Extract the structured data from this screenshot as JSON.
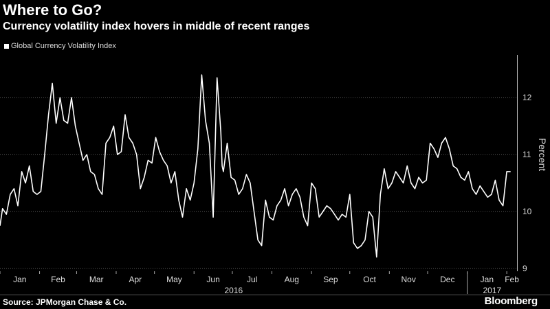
{
  "header": {
    "title": "Where to Go?",
    "subtitle": "Currency volatility index hovers in middle of recent ranges"
  },
  "footer": {
    "source": "Source: JPMorgan Chase & Co.",
    "brand": "Bloomberg"
  },
  "colors": {
    "background": "#000000",
    "line": "#ffffff",
    "grid": "#5a5a5a"
  },
  "chart_data": {
    "type": "line",
    "title": "Where to Go?",
    "subtitle": "Currency volatility index hovers in middle of recent ranges",
    "ylabel": "Percent",
    "ylim": [
      8.95,
      12.75
    ],
    "yticks": [
      9,
      10,
      11,
      12
    ],
    "grid": true,
    "legend_position": "top-left",
    "x_month_labels": [
      "Jan",
      "Feb",
      "Mar",
      "Apr",
      "May",
      "Jun",
      "Jul",
      "Aug",
      "Sep",
      "Oct",
      "Nov",
      "Dec",
      "Jan",
      "Feb"
    ],
    "x_year_labels": [
      "2016",
      "2017"
    ],
    "series": [
      {
        "name": "Global Currency Volatility Index",
        "x": [
          "2016-01-01",
          "2016-01-03",
          "2016-01-06",
          "2016-01-09",
          "2016-01-12",
          "2016-01-15",
          "2016-01-18",
          "2016-01-21",
          "2016-01-24",
          "2016-01-27",
          "2016-01-30",
          "2016-02-02",
          "2016-02-05",
          "2016-02-08",
          "2016-02-11",
          "2016-02-14",
          "2016-02-17",
          "2016-02-20",
          "2016-02-23",
          "2016-02-26",
          "2016-02-29",
          "2016-03-03",
          "2016-03-06",
          "2016-03-09",
          "2016-03-12",
          "2016-03-15",
          "2016-03-18",
          "2016-03-21",
          "2016-03-24",
          "2016-03-27",
          "2016-03-30",
          "2016-04-02",
          "2016-04-05",
          "2016-04-08",
          "2016-04-11",
          "2016-04-14",
          "2016-04-17",
          "2016-04-20",
          "2016-04-23",
          "2016-04-26",
          "2016-04-29",
          "2016-05-02",
          "2016-05-05",
          "2016-05-08",
          "2016-05-11",
          "2016-05-14",
          "2016-05-17",
          "2016-05-20",
          "2016-05-23",
          "2016-05-26",
          "2016-05-29",
          "2016-06-01",
          "2016-06-04",
          "2016-06-07",
          "2016-06-10",
          "2016-06-13",
          "2016-06-16",
          "2016-06-19",
          "2016-06-22",
          "2016-06-23",
          "2016-06-24",
          "2016-06-27",
          "2016-06-30",
          "2016-07-03",
          "2016-07-06",
          "2016-07-09",
          "2016-07-12",
          "2016-07-15",
          "2016-07-18",
          "2016-07-21",
          "2016-07-24",
          "2016-07-27",
          "2016-07-30",
          "2016-08-02",
          "2016-08-05",
          "2016-08-08",
          "2016-08-11",
          "2016-08-14",
          "2016-08-17",
          "2016-08-20",
          "2016-08-23",
          "2016-08-26",
          "2016-08-29",
          "2016-09-01",
          "2016-09-04",
          "2016-09-07",
          "2016-09-10",
          "2016-09-13",
          "2016-09-16",
          "2016-09-19",
          "2016-09-22",
          "2016-09-25",
          "2016-09-28",
          "2016-10-01",
          "2016-10-04",
          "2016-10-07",
          "2016-10-10",
          "2016-10-13",
          "2016-10-16",
          "2016-10-19",
          "2016-10-22",
          "2016-10-25",
          "2016-10-28",
          "2016-10-31",
          "2016-11-03",
          "2016-11-06",
          "2016-11-09",
          "2016-11-12",
          "2016-11-15",
          "2016-11-18",
          "2016-11-21",
          "2016-11-24",
          "2016-11-27",
          "2016-11-30",
          "2016-12-03",
          "2016-12-06",
          "2016-12-09",
          "2016-12-12",
          "2016-12-15",
          "2016-12-18",
          "2016-12-21",
          "2016-12-24",
          "2016-12-27",
          "2016-12-30",
          "2017-01-02",
          "2017-01-05",
          "2017-01-08",
          "2017-01-11",
          "2017-01-14",
          "2017-01-17",
          "2017-01-20",
          "2017-01-23",
          "2017-01-26",
          "2017-01-29",
          "2017-02-01",
          "2017-02-04"
        ],
        "values": [
          9.75,
          10.05,
          9.95,
          10.3,
          10.4,
          10.1,
          10.7,
          10.5,
          10.8,
          10.35,
          10.3,
          10.35,
          11.0,
          11.7,
          12.25,
          11.55,
          12.0,
          11.6,
          11.55,
          12.0,
          11.5,
          11.2,
          10.9,
          11.0,
          10.7,
          10.65,
          10.4,
          10.3,
          11.2,
          11.3,
          11.5,
          11.0,
          11.05,
          11.7,
          11.3,
          11.2,
          11.0,
          10.4,
          10.6,
          10.9,
          10.85,
          11.3,
          11.05,
          10.9,
          10.8,
          10.5,
          10.7,
          10.2,
          9.9,
          10.4,
          10.2,
          10.5,
          11.1,
          12.4,
          11.6,
          11.2,
          9.9,
          12.35,
          11.4,
          10.8,
          10.7,
          11.2,
          10.6,
          10.55,
          10.3,
          10.4,
          10.65,
          10.5,
          10.0,
          9.5,
          9.4,
          10.2,
          9.9,
          9.85,
          10.1,
          10.2,
          10.4,
          10.1,
          10.3,
          10.4,
          10.25,
          9.9,
          9.75,
          10.5,
          10.4,
          9.9,
          10.0,
          10.1,
          10.05,
          9.95,
          9.85,
          9.95,
          9.9,
          10.3,
          9.45,
          9.35,
          9.4,
          9.5,
          10.0,
          9.9,
          9.2,
          10.3,
          10.75,
          10.4,
          10.5,
          10.7,
          10.6,
          10.5,
          10.8,
          10.5,
          10.4,
          10.6,
          10.5,
          10.55,
          11.2,
          11.1,
          10.95,
          11.2,
          11.3,
          11.1,
          10.8,
          10.75,
          10.6,
          10.55,
          10.7,
          10.4,
          10.3,
          10.45,
          10.35,
          10.25,
          10.3,
          10.55,
          10.2,
          10.1,
          10.7,
          10.7
        ]
      }
    ]
  }
}
